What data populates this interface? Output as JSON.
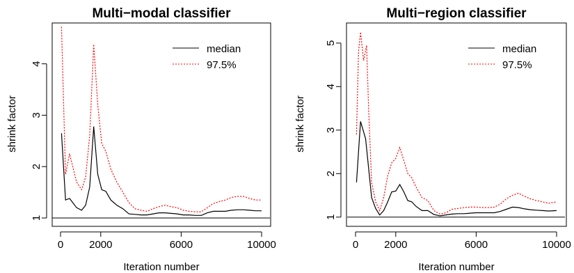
{
  "chart_data": [
    {
      "type": "line",
      "title": "Multi−modal classifier",
      "xlabel": "Iteration number",
      "ylabel": "shrink factor",
      "xlim": [
        0,
        10000
      ],
      "ylim": [
        1,
        4.7
      ],
      "xticks": [
        {
          "value": 0,
          "label": "0"
        },
        {
          "value": 2000,
          "label": "2000"
        },
        {
          "value": 6000,
          "label": "6000"
        },
        {
          "value": 10000,
          "label": "10000"
        }
      ],
      "yticks": [
        {
          "value": 1,
          "label": "1"
        },
        {
          "value": 2,
          "label": "2"
        },
        {
          "value": 3,
          "label": "3"
        },
        {
          "value": 4,
          "label": "4"
        }
      ],
      "reference_line": 1,
      "legend_position": "top-right",
      "series": [
        {
          "name": "median",
          "color": "#000000",
          "dash": "solid",
          "x": [
            50,
            250,
            450,
            800,
            1050,
            1250,
            1450,
            1650,
            1850,
            2050,
            2250,
            2500,
            2800,
            3100,
            3400,
            3700,
            4000,
            4300,
            4600,
            4900,
            5200,
            5500,
            5800,
            6100,
            6400,
            6700,
            7000,
            7300,
            7600,
            7900,
            8200,
            8500,
            8800,
            9100,
            9400,
            9700,
            10000
          ],
          "y": [
            2.65,
            1.35,
            1.38,
            1.2,
            1.15,
            1.25,
            1.6,
            2.78,
            1.85,
            1.55,
            1.52,
            1.35,
            1.25,
            1.18,
            1.08,
            1.07,
            1.06,
            1.06,
            1.08,
            1.1,
            1.1,
            1.09,
            1.08,
            1.06,
            1.06,
            1.05,
            1.05,
            1.1,
            1.13,
            1.13,
            1.13,
            1.15,
            1.16,
            1.16,
            1.15,
            1.14,
            1.14
          ]
        },
        {
          "name": "97.5%",
          "color": "#ff0000",
          "dash": "dotted",
          "x": [
            50,
            250,
            450,
            800,
            1050,
            1250,
            1450,
            1650,
            1850,
            2050,
            2250,
            2500,
            2800,
            3100,
            3400,
            3700,
            4000,
            4300,
            4600,
            4900,
            5200,
            5500,
            5800,
            6100,
            6400,
            6700,
            7000,
            7300,
            7600,
            7900,
            8200,
            8500,
            8800,
            9100,
            9400,
            9700,
            10000
          ],
          "y": [
            4.72,
            1.85,
            2.25,
            1.7,
            1.55,
            1.8,
            2.6,
            4.38,
            3.2,
            2.45,
            2.3,
            1.95,
            1.7,
            1.5,
            1.3,
            1.18,
            1.15,
            1.13,
            1.18,
            1.22,
            1.25,
            1.22,
            1.2,
            1.15,
            1.13,
            1.12,
            1.12,
            1.2,
            1.28,
            1.32,
            1.35,
            1.4,
            1.42,
            1.42,
            1.38,
            1.35,
            1.35
          ]
        }
      ]
    },
    {
      "type": "line",
      "title": "Multi−region classifier",
      "xlabel": "Iteration number",
      "ylabel": "shrink factor",
      "xlim": [
        0,
        10000
      ],
      "ylim": [
        0.98,
        5.35
      ],
      "xticks": [
        {
          "value": 0,
          "label": "0"
        },
        {
          "value": 2000,
          "label": "2000"
        },
        {
          "value": 6000,
          "label": "6000"
        },
        {
          "value": 10000,
          "label": "10000"
        }
      ],
      "yticks": [
        {
          "value": 1,
          "label": "1"
        },
        {
          "value": 2,
          "label": "2"
        },
        {
          "value": 3,
          "label": "3"
        },
        {
          "value": 4,
          "label": "4"
        },
        {
          "value": 5,
          "label": "5"
        }
      ],
      "reference_line": 1,
      "legend_position": "top-right",
      "series": [
        {
          "name": "median",
          "color": "#000000",
          "dash": "solid",
          "x": [
            50,
            250,
            500,
            800,
            1000,
            1200,
            1400,
            1600,
            1800,
            2000,
            2200,
            2400,
            2600,
            2800,
            3000,
            3300,
            3600,
            3900,
            4200,
            4500,
            4800,
            5100,
            5400,
            5700,
            6000,
            6300,
            6600,
            6900,
            7200,
            7500,
            7800,
            8100,
            8400,
            8700,
            9000,
            9300,
            9600,
            10000
          ],
          "y": [
            1.8,
            3.2,
            2.8,
            1.45,
            1.2,
            1.05,
            1.15,
            1.35,
            1.58,
            1.6,
            1.75,
            1.58,
            1.38,
            1.35,
            1.25,
            1.15,
            1.15,
            1.06,
            1.03,
            1.05,
            1.07,
            1.08,
            1.08,
            1.09,
            1.1,
            1.1,
            1.1,
            1.1,
            1.13,
            1.18,
            1.23,
            1.22,
            1.19,
            1.17,
            1.16,
            1.15,
            1.14,
            1.15
          ]
        },
        {
          "name": "97.5%",
          "color": "#ff0000",
          "dash": "dotted",
          "x": [
            50,
            150,
            250,
            400,
            550,
            650,
            800,
            1000,
            1200,
            1400,
            1600,
            1800,
            2000,
            2200,
            2400,
            2600,
            2800,
            3000,
            3300,
            3600,
            3900,
            4200,
            4500,
            4800,
            5100,
            5400,
            5700,
            6000,
            6300,
            6600,
            6900,
            7200,
            7500,
            7800,
            8100,
            8400,
            8700,
            9000,
            9300,
            9600,
            10000
          ],
          "y": [
            2.9,
            4.8,
            5.25,
            4.6,
            4.95,
            3.5,
            1.8,
            1.35,
            1.15,
            1.45,
            1.95,
            2.25,
            2.35,
            2.6,
            2.3,
            2.0,
            1.9,
            1.7,
            1.45,
            1.38,
            1.15,
            1.07,
            1.1,
            1.18,
            1.2,
            1.22,
            1.23,
            1.23,
            1.22,
            1.22,
            1.23,
            1.3,
            1.42,
            1.5,
            1.55,
            1.48,
            1.42,
            1.38,
            1.35,
            1.32,
            1.35
          ]
        }
      ]
    }
  ]
}
